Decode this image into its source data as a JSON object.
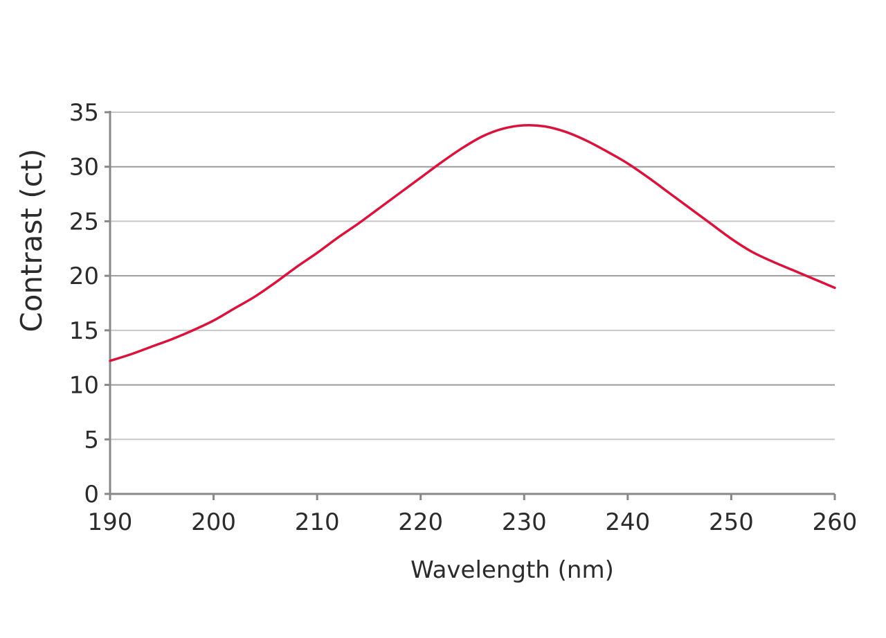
{
  "chart_data": {
    "type": "line",
    "title": "",
    "xlabel": "Wavelength (nm)",
    "ylabel": "Contrast (ct)",
    "xlim": [
      190,
      260
    ],
    "ylim": [
      0,
      35
    ],
    "x_ticks": [
      190,
      200,
      210,
      220,
      230,
      240,
      250,
      260
    ],
    "y_ticks": [
      0,
      5,
      10,
      15,
      20,
      25,
      30,
      35
    ],
    "grid": "horizontal",
    "legend": "none",
    "series": [
      {
        "color": "#d9143c",
        "x": [
          190,
          192,
          194,
          196,
          198,
          200,
          202,
          204,
          206,
          208,
          210,
          212,
          214,
          216,
          218,
          220,
          222,
          224,
          226,
          228,
          230,
          232,
          234,
          236,
          238,
          240,
          242,
          244,
          246,
          248,
          250,
          252,
          254,
          256,
          258,
          260
        ],
        "y": [
          12.2,
          12.8,
          13.5,
          14.2,
          15.0,
          15.9,
          17.0,
          18.1,
          19.4,
          20.8,
          22.1,
          23.5,
          24.8,
          26.2,
          27.6,
          29.0,
          30.4,
          31.7,
          32.8,
          33.5,
          33.8,
          33.7,
          33.2,
          32.4,
          31.4,
          30.3,
          29.0,
          27.6,
          26.2,
          24.8,
          23.4,
          22.2,
          21.3,
          20.5,
          19.7,
          18.9
        ]
      }
    ]
  }
}
